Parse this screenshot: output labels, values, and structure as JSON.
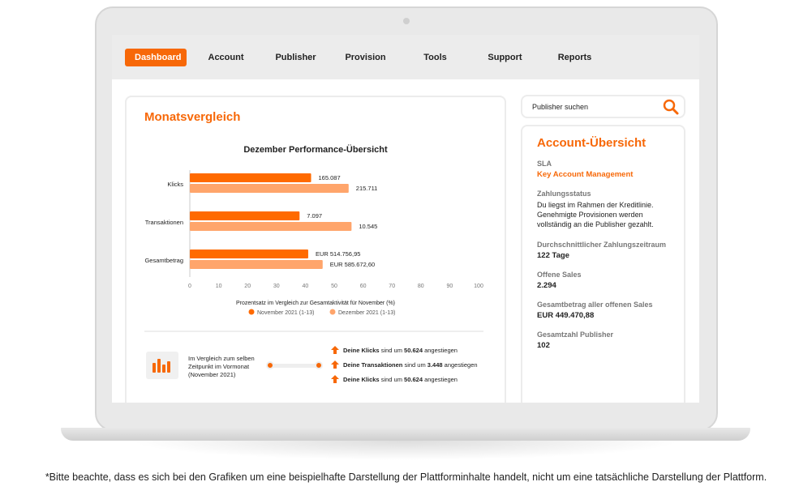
{
  "nav": {
    "items": [
      "Dashboard",
      "Account",
      "Publisher",
      "Provision",
      "Tools",
      "Support",
      "Reports"
    ],
    "active": "Dashboard"
  },
  "left": {
    "title": "Monatsvergleich",
    "comparison_text": [
      "Im Vergleich zum selben",
      "Zeitpunkt im Vormonat",
      "(November 2021)"
    ],
    "insights": [
      {
        "bold": "Deine Klicks",
        "mid": " sind um ",
        "num": "50.624",
        "end": " angestiegen"
      },
      {
        "bold": "Deine Transaktionen",
        "mid": " sind um ",
        "num": "3.448",
        "end": " angestiegen"
      },
      {
        "bold": "Deine Klicks",
        "mid": " sind um ",
        "num": "50.624",
        "end": " angestiegen"
      }
    ]
  },
  "chart_data": {
    "type": "bar",
    "orientation": "horizontal",
    "title": "Dezember Performance-Übersicht",
    "categories": [
      "Klicks",
      "Transaktionen",
      "Gesamtbetrag"
    ],
    "xlabel": "Prozentsatz im Vergleich zur Gesamtaktivität für November (%)",
    "xlim": [
      0,
      100
    ],
    "xticks": [
      0,
      10,
      20,
      30,
      40,
      50,
      60,
      70,
      80,
      90,
      100
    ],
    "legend": "bottom",
    "series": [
      {
        "name": "November 2021 (1-13)",
        "color": "#ff6a00",
        "values": [
          42,
          38,
          41
        ],
        "labels": [
          "165.087",
          "7.097",
          "EUR 514.756,95"
        ]
      },
      {
        "name": "Dezember 2021 (1-13)",
        "color": "#ffa56b",
        "values": [
          55,
          56,
          46
        ],
        "labels": [
          "215.711",
          "10.545",
          "EUR 585.672,60"
        ]
      }
    ]
  },
  "search": {
    "placeholder": "Publisher suchen"
  },
  "account": {
    "title": "Account-Übersicht",
    "fields": [
      {
        "label": "SLA",
        "value": "Key Account Management"
      },
      {
        "label": "Zahlungsstatus",
        "value": "Du liegst im Rahmen der Kreditlinie. Genehmigte Provisionen werden vollständig an die Publisher gezahlt."
      },
      {
        "label": "Durchschnittlicher Zahlungszeitraum",
        "value": "122 Tage"
      },
      {
        "label": "Offene Sales",
        "value": "2.294"
      },
      {
        "label": "Gesamtbetrag aller offenen Sales",
        "value": "EUR 449.470,88"
      },
      {
        "label": "Gesamtzahl Publisher",
        "value": "102"
      }
    ]
  },
  "footnote": "*Bitte beachte, dass es sich bei den Grafiken um eine beispielhafte Darstellung der Plattforminhalte handelt, nicht um eine tatsächliche Darstellung der Plattform.",
  "colors": {
    "accent": "#f76808"
  }
}
